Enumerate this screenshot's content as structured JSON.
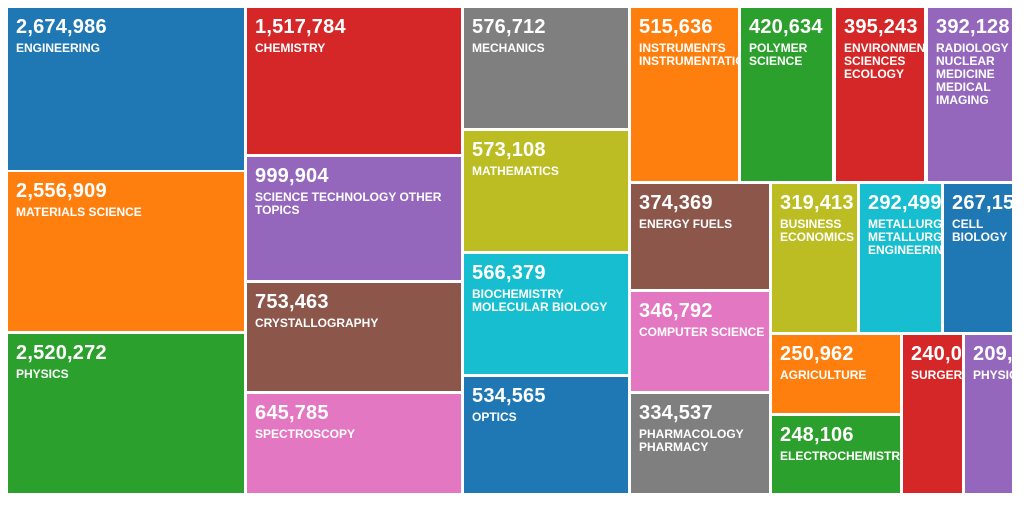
{
  "chart_data": {
    "type": "treemap",
    "title": "",
    "items": [
      {
        "label": "ENGINEERING",
        "value_text": "2,674,986",
        "value": 2674986,
        "color": "#1f77b4"
      },
      {
        "label": "MATERIALS SCIENCE",
        "value_text": "2,556,909",
        "value": 2556909,
        "color": "#ff7f0e"
      },
      {
        "label": "PHYSICS",
        "value_text": "2,520,272",
        "value": 2520272,
        "color": "#2ca02c"
      },
      {
        "label": "CHEMISTRY",
        "value_text": "1,517,784",
        "value": 1517784,
        "color": "#d62728"
      },
      {
        "label": "SCIENCE TECHNOLOGY OTHER TOPICS",
        "value_text": "999,904",
        "value": 999904,
        "color": "#9467bd"
      },
      {
        "label": "CRYSTALLOGRAPHY",
        "value_text": "753,463",
        "value": 753463,
        "color": "#8c564b"
      },
      {
        "label": "SPECTROSCOPY",
        "value_text": "645,785",
        "value": 645785,
        "color": "#e377c2"
      },
      {
        "label": "MECHANICS",
        "value_text": "576,712",
        "value": 576712,
        "color": "#7f7f7f"
      },
      {
        "label": "MATHEMATICS",
        "value_text": "573,108",
        "value": 573108,
        "color": "#bcbd22"
      },
      {
        "label": "BIOCHEMISTRY MOLECULAR BIOLOGY",
        "value_text": "566,379",
        "value": 566379,
        "color": "#17becf"
      },
      {
        "label": "OPTICS",
        "value_text": "534,565",
        "value": 534565,
        "color": "#1f77b4"
      },
      {
        "label": "INSTRUMENTS INSTRUMENTATION",
        "value_text": "515,636",
        "value": 515636,
        "color": "#ff7f0e"
      },
      {
        "label": "POLYMER SCIENCE",
        "value_text": "420,634",
        "value": 420634,
        "color": "#2ca02c"
      },
      {
        "label": "ENVIRONMENTAL SCIENCES ECOLOGY",
        "value_text": "395,243",
        "value": 395243,
        "color": "#d62728"
      },
      {
        "label": "RADIOLOGY NUCLEAR MEDICINE MEDICAL IMAGING",
        "value_text": "392,128",
        "value": 392128,
        "color": "#9467bd"
      },
      {
        "label": "ENERGY FUELS",
        "value_text": "374,369",
        "value": 374369,
        "color": "#8c564b"
      },
      {
        "label": "COMPUTER SCIENCE",
        "value_text": "346,792",
        "value": 346792,
        "color": "#e377c2"
      },
      {
        "label": "PHARMACOLOGY PHARMACY",
        "value_text": "334,537",
        "value": 334537,
        "color": "#7f7f7f"
      },
      {
        "label": "BUSINESS ECONOMICS",
        "value_text": "319,413",
        "value": 319413,
        "color": "#bcbd22"
      },
      {
        "label": "METALLURGY METALLURGICAL ENGINEERING",
        "value_text": "292,499",
        "value": 292499,
        "color": "#17becf"
      },
      {
        "label": "CELL BIOLOGY",
        "value_text": "267,15",
        "value": null,
        "color": "#1f77b4"
      },
      {
        "label": "AGRICULTURE",
        "value_text": "250,962",
        "value": 250962,
        "color": "#ff7f0e"
      },
      {
        "label": "ELECTROCHEMISTRY",
        "value_text": "248,106",
        "value": 248106,
        "color": "#2ca02c"
      },
      {
        "label": "SURGERY",
        "value_text": "240,0",
        "value": null,
        "color": "#d62728"
      },
      {
        "label": "PHYSICS",
        "value_text": "209,",
        "value": null,
        "color": "#9467bd"
      }
    ]
  }
}
